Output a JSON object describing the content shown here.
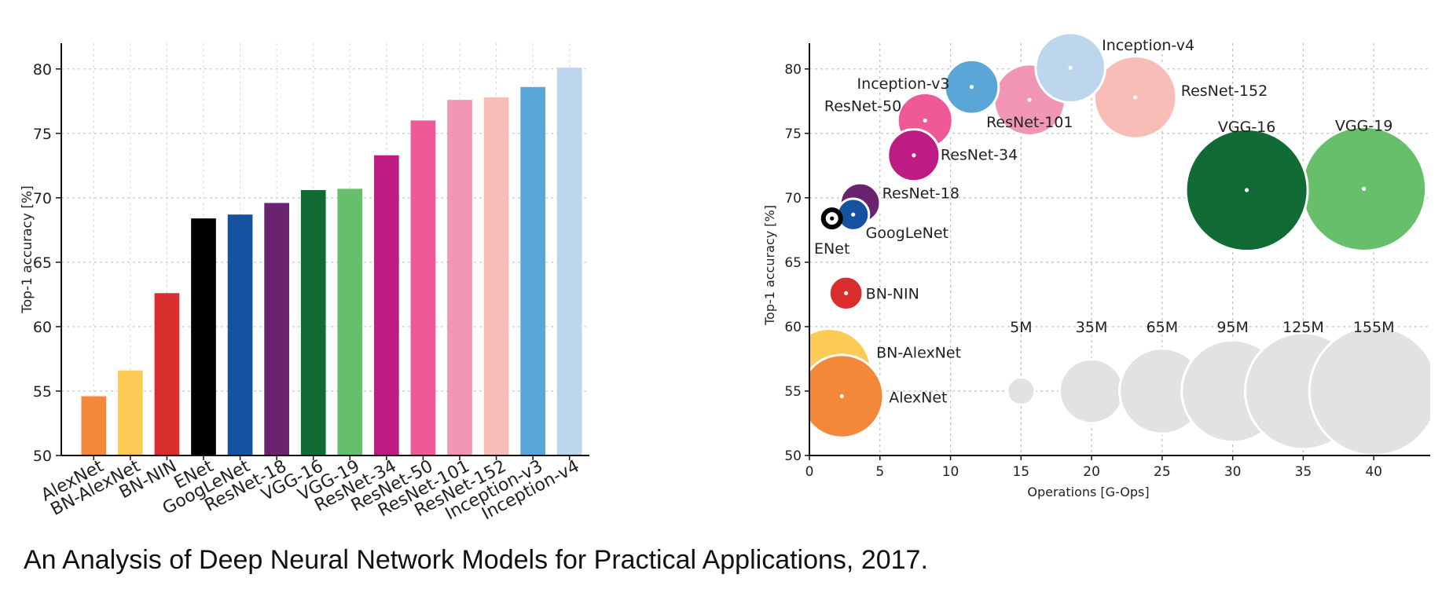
{
  "chart_data": [
    {
      "type": "bar",
      "title": "",
      "xlabel": "",
      "ylabel": "Top-1 accuracy [%]",
      "ylim": [
        50,
        82
      ],
      "yticks": [
        50,
        55,
        60,
        65,
        70,
        75,
        80
      ],
      "ytick_labels": [
        "50",
        "55",
        "60",
        "65",
        "70",
        "75",
        "80"
      ],
      "grid": true,
      "categories": [
        "AlexNet",
        "BN-AlexNet",
        "BN-NIN",
        "ENet",
        "GoogLeNet",
        "ResNet-18",
        "VGG-16",
        "VGG-19",
        "ResNet-34",
        "ResNet-50",
        "ResNet-101",
        "ResNet-152",
        "Inception-v3",
        "Inception-v4"
      ],
      "values": [
        54.6,
        56.6,
        62.6,
        68.4,
        68.7,
        69.6,
        70.6,
        70.7,
        73.3,
        76.0,
        77.6,
        77.8,
        78.6,
        80.1
      ],
      "colors": [
        "#f4883a",
        "#fdca56",
        "#da2d2d",
        "#000000",
        "#1552a0",
        "#6a236f",
        "#116b34",
        "#67bf6c",
        "#bf1b84",
        "#ee5998",
        "#f296b5",
        "#f9bdb8",
        "#5aa6d6",
        "#bdd6ee"
      ]
    },
    {
      "type": "scatter",
      "title": "",
      "xlabel": "Operations [G-Ops]",
      "ylabel": "Top-1 accuracy [%]",
      "xlim": [
        0,
        44
      ],
      "ylim": [
        50,
        82
      ],
      "xticks": [
        0,
        5,
        10,
        15,
        20,
        25,
        30,
        35,
        40
      ],
      "xtick_labels": [
        "0",
        "5",
        "10",
        "15",
        "20",
        "25",
        "30",
        "35",
        "40"
      ],
      "yticks": [
        50,
        55,
        60,
        65,
        70,
        75,
        80
      ],
      "ytick_labels": [
        "50",
        "55",
        "60",
        "65",
        "70",
        "75",
        "80"
      ],
      "grid": true,
      "size_encoding": "parameters (millions)",
      "points": [
        {
          "name": "AlexNet",
          "ops": 2.3,
          "accuracy": 54.6,
          "params_m": 61,
          "color": "#f4883a"
        },
        {
          "name": "BN-AlexNet",
          "ops": 1.4,
          "accuracy": 56.6,
          "params_m": 62,
          "color": "#fdca56"
        },
        {
          "name": "BN-NIN",
          "ops": 2.6,
          "accuracy": 62.6,
          "params_m": 8,
          "color": "#da2d2d"
        },
        {
          "name": "ENet",
          "ops": 1.6,
          "accuracy": 68.4,
          "params_m": 1.5,
          "color": "#000000"
        },
        {
          "name": "GoogLeNet",
          "ops": 3.1,
          "accuracy": 68.7,
          "params_m": 7,
          "color": "#1552a0"
        },
        {
          "name": "ResNet-18",
          "ops": 3.6,
          "accuracy": 69.6,
          "params_m": 12,
          "color": "#6a236f"
        },
        {
          "name": "VGG-16",
          "ops": 31,
          "accuracy": 70.6,
          "params_m": 138,
          "color": "#116b34"
        },
        {
          "name": "VGG-19",
          "ops": 39.3,
          "accuracy": 70.7,
          "params_m": 144,
          "color": "#67bf6c"
        },
        {
          "name": "ResNet-34",
          "ops": 7.4,
          "accuracy": 73.3,
          "params_m": 22,
          "color": "#bf1b84"
        },
        {
          "name": "ResNet-50",
          "ops": 8.2,
          "accuracy": 76.0,
          "params_m": 25,
          "color": "#ee5998"
        },
        {
          "name": "ResNet-101",
          "ops": 15.6,
          "accuracy": 77.6,
          "params_m": 44,
          "color": "#f296b5"
        },
        {
          "name": "ResNet-152",
          "ops": 23.1,
          "accuracy": 77.8,
          "params_m": 60,
          "color": "#f9bdb8"
        },
        {
          "name": "Inception-v3",
          "ops": 11.5,
          "accuracy": 78.6,
          "params_m": 24,
          "color": "#5aa6d6"
        },
        {
          "name": "Inception-v4",
          "ops": 18.5,
          "accuracy": 80.1,
          "params_m": 42,
          "color": "#bdd6ee"
        }
      ],
      "size_legend": [
        {
          "label": "5M",
          "params_m": 5,
          "ops": 15
        },
        {
          "label": "35M",
          "params_m": 35,
          "ops": 20
        },
        {
          "label": "65M",
          "params_m": 65,
          "ops": 25
        },
        {
          "label": "95M",
          "params_m": 95,
          "ops": 30
        },
        {
          "label": "125M",
          "params_m": 125,
          "ops": 35
        },
        {
          "label": "155M",
          "params_m": 155,
          "ops": 40
        }
      ],
      "size_legend_accuracy": 55
    }
  ],
  "caption": "An Analysis of Deep Neural Network Models for Practical Applications, 2017."
}
